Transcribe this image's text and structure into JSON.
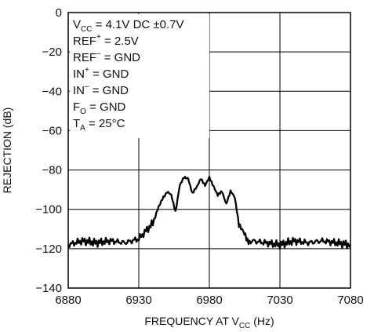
{
  "chart_data": {
    "type": "line",
    "xlabel": {
      "main": "FREQUENCY AT V",
      "sub": "CC",
      "unit": " (Hz)"
    },
    "ylabel": "REJECTION (dB)",
    "xlim": [
      6880,
      7080
    ],
    "ylim": [
      -140,
      0
    ],
    "xticks": [
      6880,
      6930,
      6980,
      7030,
      7080
    ],
    "yticks": [
      0,
      -20,
      -40,
      -60,
      -80,
      -100,
      -120,
      -140
    ],
    "grid": true,
    "conditions": [
      {
        "pre": "V",
        "sub": "CC",
        "post": " = 4.1V DC ±0.7V"
      },
      {
        "pre": "REF",
        "sup": "+",
        "post": " = 2.5V"
      },
      {
        "pre": "REF",
        "sup": "–",
        "post": " = GND"
      },
      {
        "pre": "IN",
        "sup": "+",
        "post": " = GND"
      },
      {
        "pre": "IN",
        "sup": "–",
        "post": " = GND"
      },
      {
        "pre": "F",
        "sub": "O",
        "post": " = GND"
      },
      {
        "pre": "T",
        "sub": "A",
        "post": " = 25°C"
      }
    ],
    "series": [
      {
        "color": "#000000",
        "x": [
          6880,
          6890,
          6900,
          6910,
          6920,
          6930,
          6935,
          6940,
          6945,
          6950,
          6953,
          6956,
          6959,
          6962,
          6965,
          6968,
          6971,
          6974,
          6977,
          6980,
          6983,
          6986,
          6989,
          6992,
          6995,
          6998,
          7001,
          7004,
          7007,
          7010,
          7020,
          7030,
          7040,
          7050,
          7060,
          7070,
          7080
        ],
        "y": [
          -118,
          -116,
          -117,
          -116,
          -117,
          -115,
          -111,
          -107,
          -97,
          -91,
          -93,
          -101,
          -88,
          -84,
          -84,
          -92,
          -89,
          -84,
          -88,
          -84,
          -88,
          -93,
          -91,
          -97,
          -91,
          -94,
          -107,
          -112,
          -116,
          -116,
          -117,
          -118,
          -116,
          -117,
          -116,
          -117,
          -118
        ]
      }
    ]
  }
}
